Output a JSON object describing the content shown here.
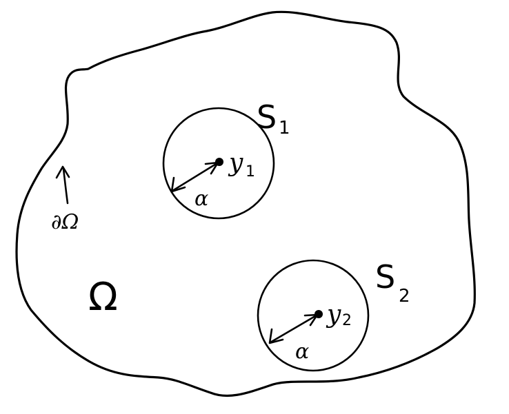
{
  "domain_label": {
    "symbol": "Ω"
  },
  "boundary_label": {
    "symbol": "∂Ω"
  },
  "spheres": [
    {
      "name": "S",
      "index": "1",
      "center_label": "y",
      "center_index": "1",
      "radius_label": "α"
    },
    {
      "name": "S",
      "index": "2",
      "center_label": "y",
      "center_index": "2",
      "radius_label": "α"
    }
  ]
}
